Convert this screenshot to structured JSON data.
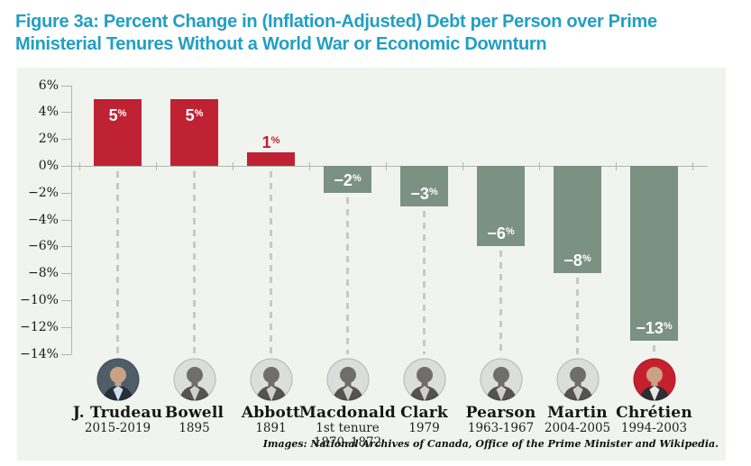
{
  "title": "Figure 3a: Percent Change in (Inflation-Adjusted) Debt per Person over Prime Ministerial Tenures Without a World War or Economic Downturn",
  "footer": {
    "credit": "Images: National Archives of Canada, Office of the Prime Minister and Wikipedia."
  },
  "colors": {
    "title_accent": "#219fc4",
    "panel_bg": "#f0f3ee",
    "positive": "#bf2233",
    "negative": "#7b9184",
    "axis": "#b2b6af",
    "leader_dash": "#c6cac3",
    "value_label_on_bar": "#ffffff"
  },
  "chart_data": {
    "type": "bar",
    "title": "Figure 3a: Percent Change in (Inflation-Adjusted) Debt per Person over Prime Ministerial Tenures Without a World War or Economic Downturn",
    "unit": "%",
    "ylim": [
      -14,
      6
    ],
    "ytick_step": 2,
    "yticks": [
      {
        "value": 6,
        "label": "6%"
      },
      {
        "value": 4,
        "label": "4%"
      },
      {
        "value": 2,
        "label": "2%"
      },
      {
        "value": 0,
        "label": "0%"
      },
      {
        "value": -2,
        "label": "−2%"
      },
      {
        "value": -4,
        "label": "−4%"
      },
      {
        "value": -6,
        "label": "−6%"
      },
      {
        "value": -8,
        "label": "−8%"
      },
      {
        "value": -10,
        "label": "−10%"
      },
      {
        "value": -12,
        "label": "−12%"
      },
      {
        "value": -14,
        "label": "−14%"
      }
    ],
    "categories": [
      "J. Trudeau",
      "Bowell",
      "Abbott",
      "Macdonald",
      "Clark",
      "Pearson",
      "Martin",
      "Chrétien"
    ],
    "values": [
      5,
      5,
      1,
      -2,
      -3,
      -6,
      -8,
      -13
    ],
    "grid": false,
    "legend": false,
    "bars": [
      {
        "name": "J. Trudeau",
        "years": "2015-2019",
        "note": "",
        "value": 5,
        "value_label": "5",
        "portrait": "color"
      },
      {
        "name": "Bowell",
        "years": "1895",
        "note": "",
        "value": 5,
        "value_label": "5",
        "portrait": "bw"
      },
      {
        "name": "Abbott",
        "years": "1891",
        "note": "",
        "value": 1,
        "value_label": "1",
        "portrait": "bw"
      },
      {
        "name": "Macdonald",
        "years": "1870–1872",
        "note": "1st tenure",
        "value": -2,
        "value_label": "−2",
        "portrait": "bw"
      },
      {
        "name": "Clark",
        "years": "1979",
        "note": "",
        "value": -3,
        "value_label": "−3",
        "portrait": "bw"
      },
      {
        "name": "Pearson",
        "years": "1963-1967",
        "note": "",
        "value": -6,
        "value_label": "−6",
        "portrait": "bw"
      },
      {
        "name": "Martin",
        "years": "2004-2005",
        "note": "",
        "value": -8,
        "value_label": "−8",
        "portrait": "bw"
      },
      {
        "name": "Chrétien",
        "years": "1994-2003",
        "note": "",
        "value": -13,
        "value_label": "−13",
        "portrait": "red"
      }
    ]
  }
}
